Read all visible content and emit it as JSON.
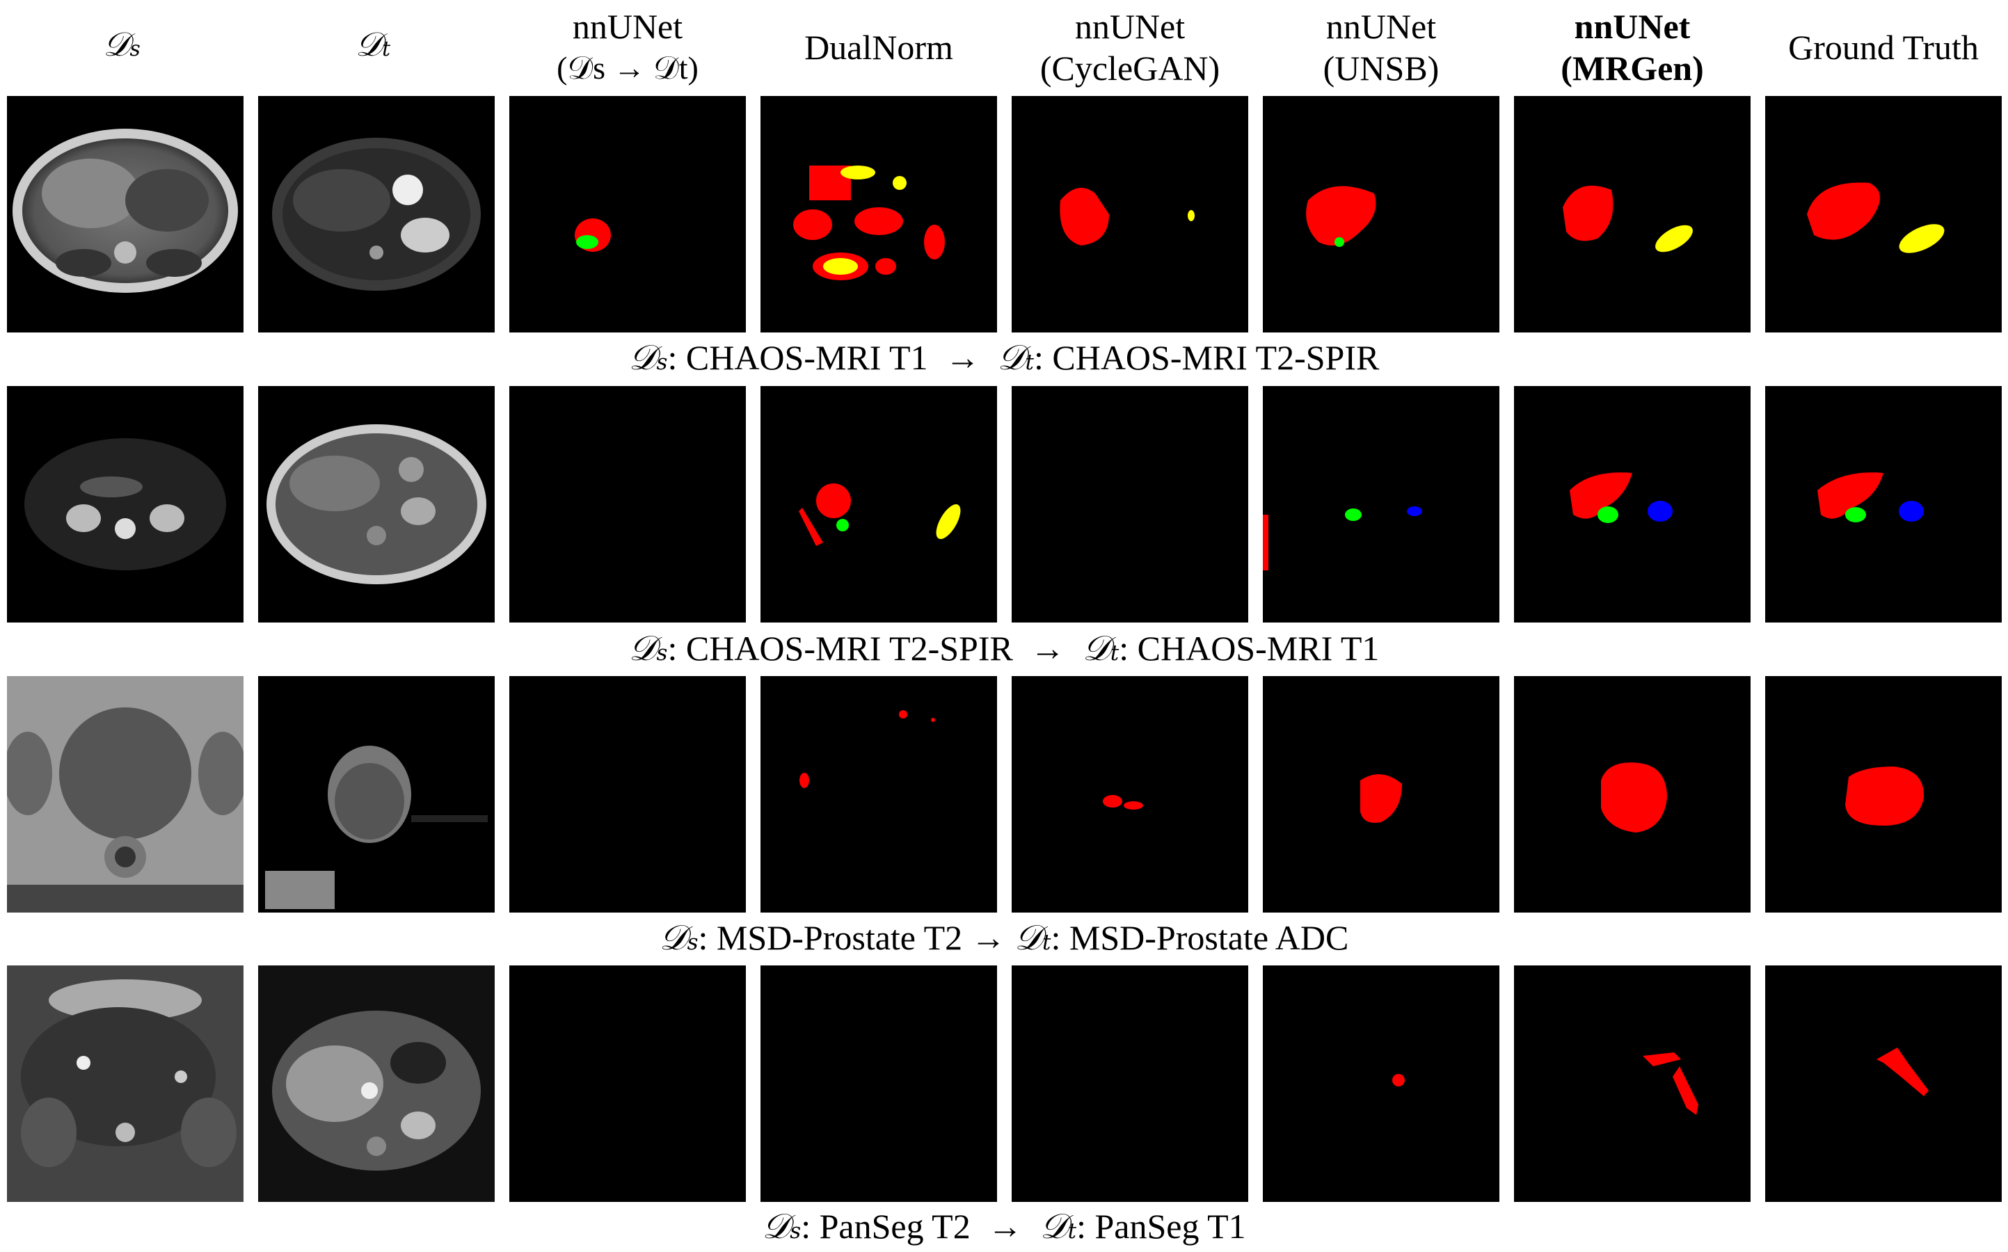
{
  "headers": [
    {
      "line1": "𝒟",
      "sub": "s"
    },
    {
      "line1": "𝒟",
      "sub": "t"
    },
    {
      "line1": "nnUNet",
      "line2": "(𝒟s → 𝒟t)"
    },
    {
      "line1": "DualNorm"
    },
    {
      "line1": "nnUNet",
      "line2": "(CycleGAN)"
    },
    {
      "line1": "nnUNet",
      "line2": "(UNSB)"
    },
    {
      "line1": "nnUNet",
      "line2": "(MRGen)"
    },
    {
      "line1": "Ground Truth"
    }
  ],
  "captions": [
    {
      "src": "𝒟",
      "src_sub": "s",
      "src_text": ": CHAOS-MRI T1",
      "arrow": "→",
      "tgt": "𝒟",
      "tgt_sub": "t",
      "tgt_text": ": CHAOS-MRI T2-SPIR"
    },
    {
      "src": "𝒟",
      "src_sub": "s",
      "src_text": ": CHAOS-MRI T2-SPIR",
      "arrow": "→",
      "tgt": "𝒟",
      "tgt_sub": "t",
      "tgt_text": ": CHAOS-MRI T1"
    },
    {
      "src": "𝒟",
      "src_sub": "s",
      "src_text": ": MSD-Prostate T2",
      "arrow": "→",
      "tgt": "𝒟",
      "tgt_sub": "t",
      "tgt_text": ": MSD-Prostate ADC"
    },
    {
      "src": "𝒟",
      "src_sub": "s",
      "src_text": ": PanSeg T2",
      "arrow": "→",
      "tgt": "𝒟",
      "tgt_sub": "t",
      "tgt_text": ": PanSeg T1"
    }
  ],
  "colors": {
    "liver": "#ff0000",
    "spleen": "#ffff00",
    "right-kidney": "#00ff00",
    "left-kidney": "#0000ff",
    "background": "#000000"
  }
}
